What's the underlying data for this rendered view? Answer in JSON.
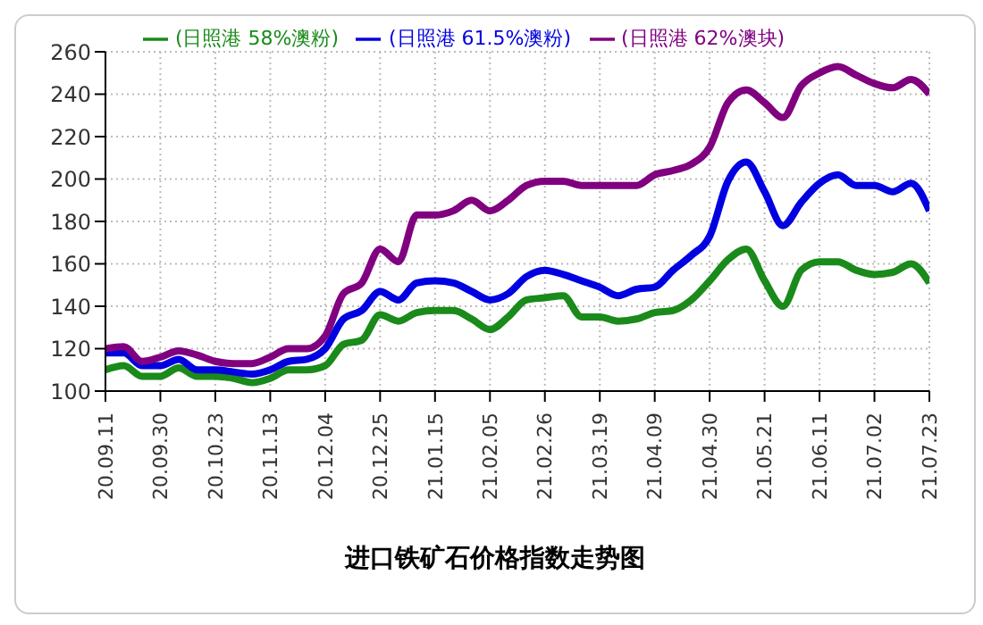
{
  "chart_data": {
    "type": "line",
    "title": "进口铁矿石价格指数走势图",
    "categories": [
      "20.09.11",
      null,
      null,
      "20.09.30",
      null,
      null,
      "20.10.23",
      null,
      null,
      "20.11.13",
      null,
      null,
      "20.12.04",
      null,
      null,
      "20.12.25",
      null,
      null,
      "21.01.15",
      null,
      null,
      "21.02.05",
      null,
      null,
      "21.02.26",
      null,
      null,
      "21.03.19",
      null,
      null,
      "21.04.09",
      null,
      null,
      "21.04.30",
      null,
      null,
      "21.05.21",
      null,
      null,
      "21.06.11",
      null,
      null,
      "21.07.02",
      null,
      null,
      "21.07.23"
    ],
    "series": [
      {
        "name": "(日照港 58%澳粉)",
        "color": "#1a8a1a",
        "values": [
          110,
          112,
          107,
          107,
          111,
          107,
          107,
          106,
          104,
          106,
          110,
          110,
          112,
          122,
          124,
          136,
          133,
          137,
          138,
          138,
          134,
          129,
          135,
          143,
          144,
          145,
          135,
          135,
          133,
          134,
          137,
          138,
          143,
          152,
          162,
          167,
          152,
          140,
          157,
          161,
          161,
          157,
          155,
          156,
          160,
          151
        ]
      },
      {
        "name": "(日照港 61.5%澳粉)",
        "color": "#0000e0",
        "values": [
          118,
          118,
          112,
          112,
          115,
          110,
          110,
          109,
          108,
          110,
          114,
          115,
          120,
          134,
          138,
          147,
          143,
          151,
          152,
          151,
          147,
          143,
          146,
          154,
          157,
          155,
          152,
          149,
          145,
          148,
          149,
          157,
          164,
          173,
          199,
          208,
          194,
          178,
          189,
          198,
          202,
          197,
          197,
          194,
          198,
          185
        ]
      },
      {
        "name": "(日照港 62%澳块)",
        "color": "#800080",
        "values": [
          120,
          121,
          114,
          116,
          119,
          117,
          114,
          113,
          113,
          116,
          120,
          120,
          126,
          146,
          151,
          167,
          161,
          183,
          183,
          185,
          190,
          185,
          190,
          197,
          199,
          199,
          197,
          197,
          197,
          197,
          202,
          204,
          207,
          215,
          236,
          242,
          236,
          229,
          244,
          250,
          253,
          249,
          245,
          243,
          247,
          240
        ]
      }
    ],
    "ylim": [
      100,
      260
    ],
    "yticks": [
      100,
      120,
      140,
      160,
      180,
      200,
      220,
      240,
      260
    ],
    "grid": true,
    "legend": "top",
    "marker": "none",
    "line_style": "solid"
  }
}
